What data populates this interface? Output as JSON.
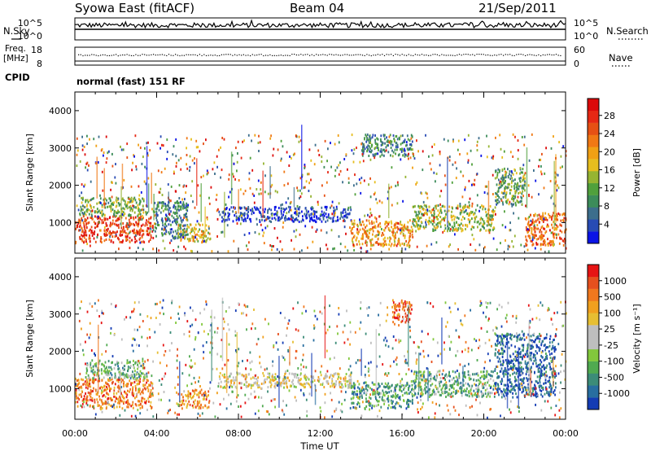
{
  "header": {
    "station": "Syowa East (fitACF)",
    "beam": "Beam 04",
    "date": "21/Sep/2011"
  },
  "noise_panel": {
    "left_label": "N.Sky",
    "right_label": "N.Search",
    "ticks_left": [
      "10^5",
      "10^0"
    ],
    "ticks_right": [
      "10^5",
      "10^0"
    ]
  },
  "freq_panel": {
    "left_label_line1": "Freq.",
    "left_label_line2": "[MHz]",
    "right_label": "Nave",
    "ticks_left": [
      "18",
      "8"
    ],
    "ticks_right": [
      "60",
      "0"
    ]
  },
  "cpid": {
    "label": "CPID",
    "mode": "normal (fast) 151 RF"
  },
  "chart_data": [
    {
      "type": "heatmap",
      "panel": "power",
      "xlabel": "Time UT",
      "ylabel": "Slant Range [km]",
      "x_ticks": [
        "00:00",
        "04:00",
        "08:00",
        "12:00",
        "16:00",
        "20:00",
        "00:00"
      ],
      "x_range_hours": [
        0,
        24
      ],
      "y_ticks": [
        1000,
        2000,
        3000,
        4000
      ],
      "ylim": [
        180,
        4500
      ],
      "colorbar": {
        "label": "Power [dB]",
        "ticks": [
          "4",
          "8",
          "12",
          "16",
          "20",
          "24",
          "28"
        ],
        "colors": [
          "#0a14e6",
          "#284bb4",
          "#3c6e8c",
          "#3c8c5a",
          "#50a03c",
          "#96b432",
          "#e6be1e",
          "#f0a014",
          "#f07814",
          "#e65014",
          "#e62814",
          "#dc0a0a"
        ]
      },
      "regions": [
        {
          "t": [
            0.0,
            3.8
          ],
          "r": [
            500,
            1200
          ],
          "level": 0.85
        },
        {
          "t": [
            0.2,
            3.5
          ],
          "r": [
            1200,
            1700
          ],
          "level": 0.4
        },
        {
          "t": [
            3.8,
            5.5
          ],
          "r": [
            600,
            1600
          ],
          "level": 0.25
        },
        {
          "t": [
            5.0,
            6.6
          ],
          "r": [
            500,
            1000
          ],
          "level": 0.55
        },
        {
          "t": [
            7.0,
            13.5
          ],
          "r": [
            1050,
            1450
          ],
          "level": 0.08
        },
        {
          "t": [
            13.5,
            16.5
          ],
          "r": [
            400,
            1100
          ],
          "level": 0.65
        },
        {
          "t": [
            14.0,
            16.5
          ],
          "r": [
            2800,
            3400
          ],
          "level": 0.25
        },
        {
          "t": [
            16.5,
            20.5
          ],
          "r": [
            800,
            1500
          ],
          "level": 0.45
        },
        {
          "t": [
            20.5,
            22.0
          ],
          "r": [
            1500,
            2500
          ],
          "level": 0.35
        },
        {
          "t": [
            22.0,
            24.0
          ],
          "r": [
            400,
            1300
          ],
          "level": 0.75
        }
      ]
    },
    {
      "type": "heatmap",
      "panel": "velocity",
      "xlabel": "Time UT",
      "ylabel": "Slant Range [km]",
      "x_ticks": [
        "00:00",
        "04:00",
        "08:00",
        "12:00",
        "16:00",
        "20:00",
        "00:00"
      ],
      "x_range_hours": [
        0,
        24
      ],
      "y_ticks": [
        1000,
        2000,
        3000,
        4000
      ],
      "ylim": [
        180,
        4500
      ],
      "colorbar": {
        "label": "Velocity [m s^-1]",
        "ticks": [
          "1000",
          "500",
          "100",
          "25",
          "-25",
          "-100",
          "-500",
          "-1000"
        ],
        "colors": [
          "#143cb4",
          "#286ea0",
          "#3c8c78",
          "#50aa50",
          "#82c83c",
          "#bebebe",
          "#bebebe",
          "#e6be32",
          "#f0a01e",
          "#f0781e",
          "#e6501e",
          "#e61414"
        ]
      },
      "regions": [
        {
          "t": [
            0.0,
            3.8
          ],
          "r": [
            500,
            1300
          ],
          "level": 0.8
        },
        {
          "t": [
            0.5,
            3.5
          ],
          "r": [
            1300,
            1800
          ],
          "level": 0.3
        },
        {
          "t": [
            5.0,
            6.6
          ],
          "r": [
            500,
            1000
          ],
          "level": 0.75
        },
        {
          "t": [
            7.0,
            13.5
          ],
          "r": [
            1050,
            1450
          ],
          "level": 0.55
        },
        {
          "t": [
            13.5,
            16.5
          ],
          "r": [
            500,
            1200
          ],
          "level": 0.25
        },
        {
          "t": [
            15.5,
            16.5
          ],
          "r": [
            2800,
            3400
          ],
          "level": 0.85
        },
        {
          "t": [
            16.5,
            20.5
          ],
          "r": [
            800,
            1500
          ],
          "level": 0.3
        },
        {
          "t": [
            20.5,
            23.5
          ],
          "r": [
            800,
            2500
          ],
          "level": 0.1
        }
      ]
    }
  ]
}
